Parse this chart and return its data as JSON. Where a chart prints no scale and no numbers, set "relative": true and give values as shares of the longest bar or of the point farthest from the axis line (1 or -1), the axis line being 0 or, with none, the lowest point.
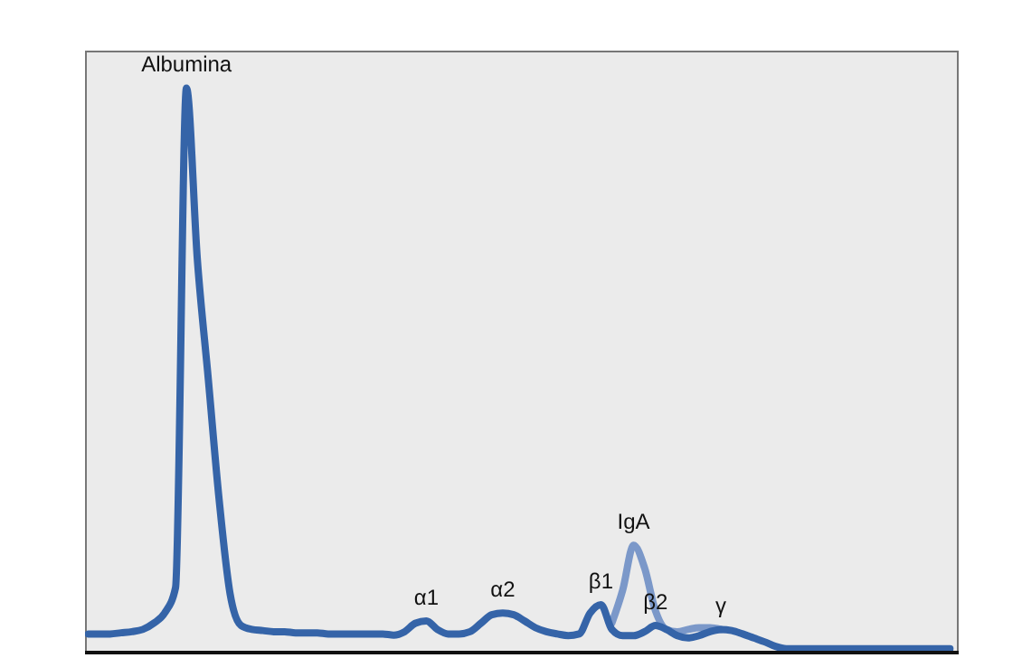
{
  "chart_data": {
    "type": "line",
    "relative": true,
    "marker": "none",
    "line_style": "solid",
    "categories": [
      null,
      null,
      null,
      null,
      null,
      null,
      null,
      null,
      null,
      null,
      null,
      null,
      null,
      null,
      null,
      null,
      null,
      null,
      null,
      null,
      null,
      null,
      null,
      null,
      null,
      null,
      null,
      null,
      null,
      null,
      null,
      null,
      null,
      null,
      null,
      null,
      null,
      null,
      null,
      null,
      null,
      null,
      null,
      null,
      null,
      null,
      null,
      null,
      null,
      null,
      null,
      null,
      null,
      null,
      null,
      null,
      null,
      null,
      null,
      null,
      null,
      null,
      null,
      null,
      null,
      null,
      null,
      null,
      null,
      null,
      null,
      null,
      null,
      null,
      null,
      null,
      null,
      null,
      null,
      null
    ],
    "series": [
      {
        "color": "#3564a8",
        "values": [
          0.033,
          0.033,
          0.033,
          0.035,
          0.037,
          0.041,
          0.052,
          0.07,
          0.115,
          1.0,
          0.696,
          0.485,
          0.27,
          0.104,
          0.048,
          0.041,
          0.039,
          0.037,
          0.037,
          0.035,
          0.035,
          0.035,
          0.033,
          0.033,
          0.033,
          0.033,
          0.033,
          0.033,
          0.031,
          0.037,
          0.052,
          0.056,
          0.041,
          0.033,
          0.033,
          0.037,
          0.052,
          0.067,
          0.07,
          0.067,
          0.056,
          0.044,
          0.037,
          0.033,
          0.03,
          0.033,
          0.07,
          0.085,
          0.041,
          0.03,
          0.03,
          0.037,
          0.048,
          0.041,
          0.03,
          0.026,
          0.03,
          0.037,
          0.041,
          0.039,
          0.033,
          0.026,
          0.019,
          0.011,
          0.007,
          0.007,
          0.007,
          0.007,
          0.007,
          0.007,
          0.007,
          0.007,
          0.007,
          0.007,
          0.007,
          0.007,
          0.007,
          0.007,
          0.007,
          0.007
        ]
      },
      {
        "color": "#7b98c9",
        "values": [
          null,
          null,
          null,
          null,
          null,
          null,
          null,
          null,
          null,
          null,
          null,
          null,
          null,
          null,
          null,
          null,
          null,
          null,
          null,
          null,
          null,
          null,
          null,
          null,
          null,
          null,
          null,
          null,
          null,
          null,
          null,
          null,
          null,
          null,
          null,
          null,
          null,
          null,
          null,
          null,
          null,
          null,
          null,
          null,
          null,
          null,
          null,
          null,
          0.052,
          0.111,
          0.19,
          0.15,
          0.074,
          0.041,
          0.037,
          0.041,
          0.044,
          0.044,
          0.041,
          null,
          null,
          null,
          null,
          null,
          null,
          null,
          null,
          null,
          null,
          null,
          null,
          null,
          null,
          null,
          null,
          null,
          null,
          null,
          null,
          null
        ]
      }
    ],
    "annotations": [
      "Albumina",
      "α1",
      "α2",
      "β1",
      "IgA",
      "β2",
      "γ"
    ]
  }
}
